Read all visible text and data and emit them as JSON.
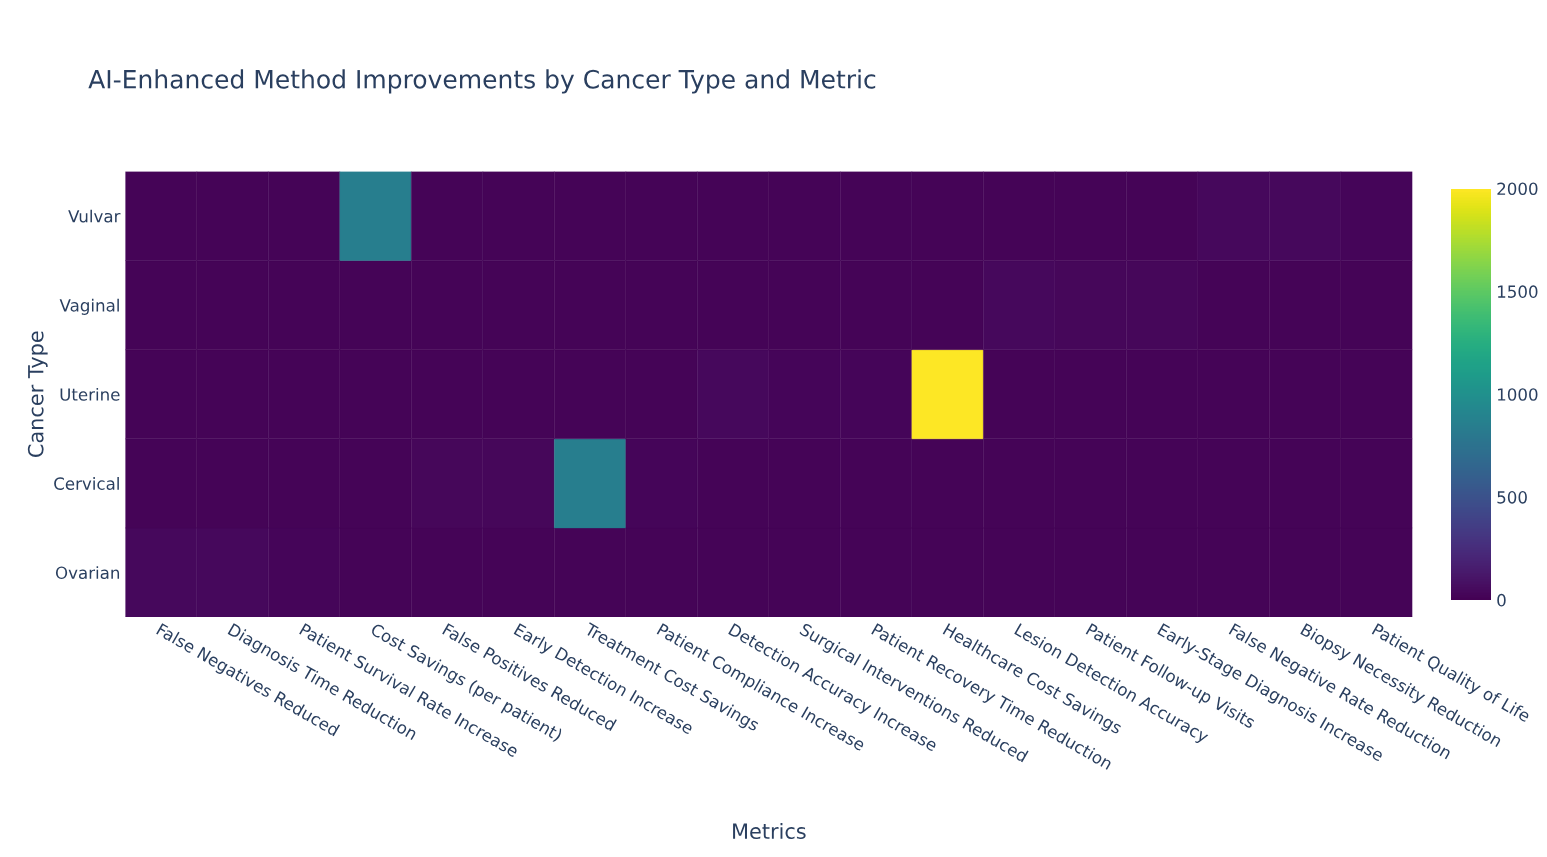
{
  "chart_data": {
    "type": "heatmap",
    "title": "AI-Enhanced Method Improvements by Cancer Type and Metric",
    "xlabel": "Metrics",
    "ylabel": "Cancer Type",
    "categories": [
      "False Negatives Reduced",
      "Diagnosis Time Reduction",
      "Patient Survival Rate Increase",
      "Cost Savings (per patient)",
      "False Positives Reduced",
      "Early Detection Increase",
      "Treatment Cost Savings",
      "Patient Compliance Increase",
      "Detection Accuracy Increase",
      "Surgical Interventions Reduced",
      "Patient Recovery Time Reduction",
      "Healthcare Cost Savings",
      "Lesion Detection Accuracy",
      "Patient Follow-up Visits",
      "Early-Stage Diagnosis Increase",
      "False Negative Rate Reduction",
      "Biopsy Necessity Reduction",
      "Patient Quality of Life"
    ],
    "y_categories": [
      "Vulvar",
      "Vaginal",
      "Uterine",
      "Cervical",
      "Ovarian"
    ],
    "cells": [
      [
        20,
        20,
        20,
        850,
        20,
        20,
        20,
        20,
        20,
        20,
        20,
        20,
        20,
        20,
        20,
        40,
        40,
        25
      ],
      [
        20,
        20,
        20,
        20,
        20,
        20,
        20,
        20,
        20,
        20,
        20,
        20,
        40,
        35,
        35,
        20,
        20,
        20
      ],
      [
        20,
        20,
        20,
        20,
        20,
        20,
        20,
        20,
        40,
        25,
        25,
        2000,
        20,
        20,
        20,
        20,
        20,
        20
      ],
      [
        20,
        20,
        20,
        20,
        35,
        35,
        850,
        30,
        20,
        20,
        20,
        20,
        20,
        20,
        20,
        20,
        20,
        20
      ],
      [
        40,
        40,
        30,
        20,
        20,
        20,
        20,
        20,
        20,
        20,
        20,
        20,
        20,
        20,
        20,
        20,
        20,
        20
      ]
    ],
    "clim": [
      0,
      2000
    ],
    "cticks": [
      0,
      500,
      1000,
      1500,
      2000
    ],
    "grid": false
  }
}
